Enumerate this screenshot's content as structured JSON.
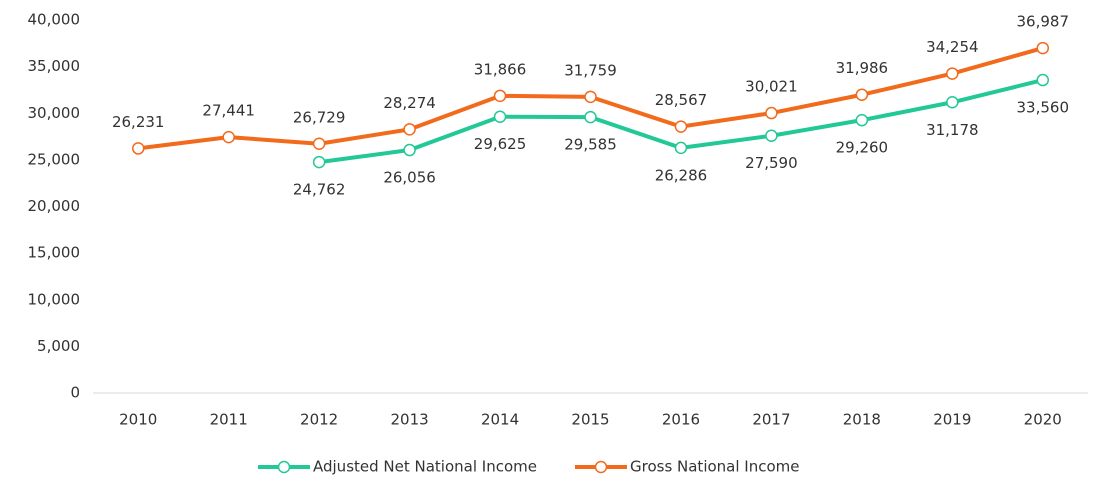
{
  "chart_data": {
    "type": "line",
    "categories": [
      "2010",
      "2011",
      "2012",
      "2013",
      "2014",
      "2015",
      "2016",
      "2017",
      "2018",
      "2019",
      "2020"
    ],
    "series": [
      {
        "name": "Adjusted Net National Income",
        "color": "#22c896",
        "values": [
          null,
          null,
          24762,
          26056,
          29625,
          29585,
          26286,
          27590,
          29260,
          31178,
          33560
        ],
        "value_labels": [
          null,
          null,
          "24,762",
          "26,056",
          "29,625",
          "29,585",
          "26,286",
          "27,590",
          "29,260",
          "31,178",
          "33,560"
        ]
      },
      {
        "name": "Gross National Income",
        "color": "#f26a1b",
        "values": [
          26231,
          27441,
          26729,
          28274,
          31866,
          31759,
          28567,
          30021,
          31986,
          34254,
          36987
        ],
        "value_labels": [
          "26,231",
          "27,441",
          "26,729",
          "28,274",
          "31,866",
          "31,759",
          "28,567",
          "30,021",
          "31,986",
          "34,254",
          "36,987"
        ]
      }
    ],
    "ylim": [
      0,
      40000
    ],
    "yticks": [
      0,
      {
        "value": 5000,
        "label": "5,000"
      },
      {
        "value": 10000,
        "label": "10,000"
      },
      {
        "value": 15000,
        "label": "15,000"
      },
      {
        "value": 20000,
        "label": "20,000"
      },
      {
        "value": 25000,
        "label": "25,000"
      },
      {
        "value": 30000,
        "label": "30,000"
      },
      {
        "value": 35000,
        "label": "35,000"
      },
      {
        "value": 40000,
        "label": "40,000"
      }
    ],
    "grid": false,
    "legend": "bottom"
  }
}
